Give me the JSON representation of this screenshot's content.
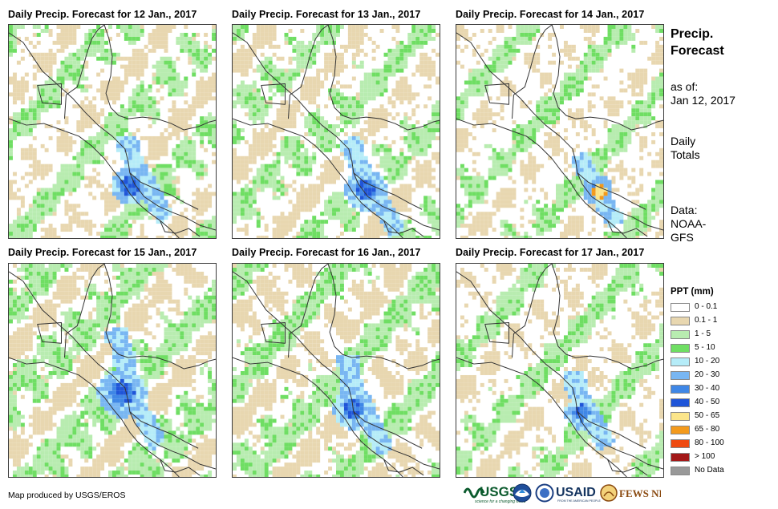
{
  "panels": [
    {
      "title": "Daily Precip. Forecast for 12 Jan., 2017"
    },
    {
      "title": "Daily Precip. Forecast for 13 Jan., 2017"
    },
    {
      "title": "Daily Precip. Forecast for 14 Jan., 2017"
    },
    {
      "title": "Daily Precip. Forecast for 15 Jan., 2017"
    },
    {
      "title": "Daily Precip. Forecast for 16 Jan., 2017"
    },
    {
      "title": "Daily Precip. Forecast for 17 Jan., 2017"
    }
  ],
  "sidebar": {
    "title_line1": "Precip.",
    "title_line2": "Forecast",
    "asof_label": "as of:",
    "asof_date": "Jan 12, 2017",
    "totals_line1": "Daily",
    "totals_line2": "Totals",
    "source_line1": "Data:",
    "source_line2": "NOAA-",
    "source_line3": "GFS"
  },
  "legend": {
    "title": "PPT (mm)",
    "items": [
      {
        "label": "0 - 0.1",
        "color": "#ffffff"
      },
      {
        "label": "0.1 - 1",
        "color": "#e8d7b0"
      },
      {
        "label": "1 - 5",
        "color": "#b8ecb0"
      },
      {
        "label": "5 - 10",
        "color": "#6fde63"
      },
      {
        "label": "10 - 20",
        "color": "#b5ecf8"
      },
      {
        "label": "20 - 30",
        "color": "#78b6f2"
      },
      {
        "label": "30 - 40",
        "color": "#3f87e6"
      },
      {
        "label": "40 - 50",
        "color": "#1f55d8"
      },
      {
        "label": "50 - 65",
        "color": "#fbe58a"
      },
      {
        "label": "65 - 80",
        "color": "#f39a1c"
      },
      {
        "label": "80 - 100",
        "color": "#ef4a10"
      },
      {
        "label": "> 100",
        "color": "#a31818"
      },
      {
        "label": "No Data",
        "color": "#999999"
      }
    ]
  },
  "footer": {
    "credit": "Map produced by USGS/EROS",
    "usgs": "USGS",
    "usgs_tagline": "science for a changing world",
    "usaid": "USAID",
    "usaid_tagline": "FROM THE AMERICAN PEOPLE",
    "fews": "FEWS NET"
  }
}
